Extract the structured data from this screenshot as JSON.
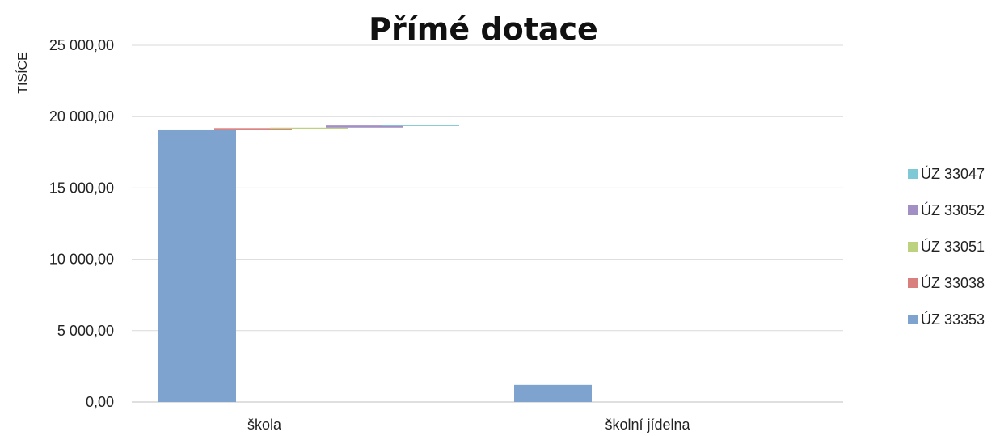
{
  "chart_data": {
    "type": "bar",
    "title": "Přímé dotace",
    "ylabel": "TISÍCE",
    "xlabel": "",
    "ylim": [
      0,
      25000
    ],
    "yticks": [
      "0,00",
      "5 000,00",
      "10 000,00",
      "15 000,00",
      "20 000,00",
      "25 000,00"
    ],
    "grid": true,
    "legend_position": "right",
    "categories": [
      "škola",
      "školní jídelna"
    ],
    "series": [
      {
        "name": "ÚZ 33353",
        "color": "#7fa3cf",
        "base": [
          0,
          0
        ],
        "values": [
          19050,
          1200
        ]
      },
      {
        "name": "ÚZ 33038",
        "color": "#d9807e",
        "base": [
          19050,
          0
        ],
        "values": [
          150,
          0
        ]
      },
      {
        "name": "ÚZ 33051",
        "color": "#bcd27f",
        "base": [
          19200,
          0
        ],
        "values": [
          30,
          0
        ]
      },
      {
        "name": "ÚZ 33052",
        "color": "#a290c4",
        "base": [
          19230,
          0
        ],
        "values": [
          150,
          0
        ]
      },
      {
        "name": "ÚZ 33047",
        "color": "#7fc8d6",
        "base": [
          19380,
          0
        ],
        "values": [
          40,
          0
        ]
      }
    ],
    "legend_order": [
      "ÚZ 33047",
      "ÚZ 33052",
      "ÚZ 33051",
      "ÚZ 33038",
      "ÚZ 33353"
    ]
  }
}
